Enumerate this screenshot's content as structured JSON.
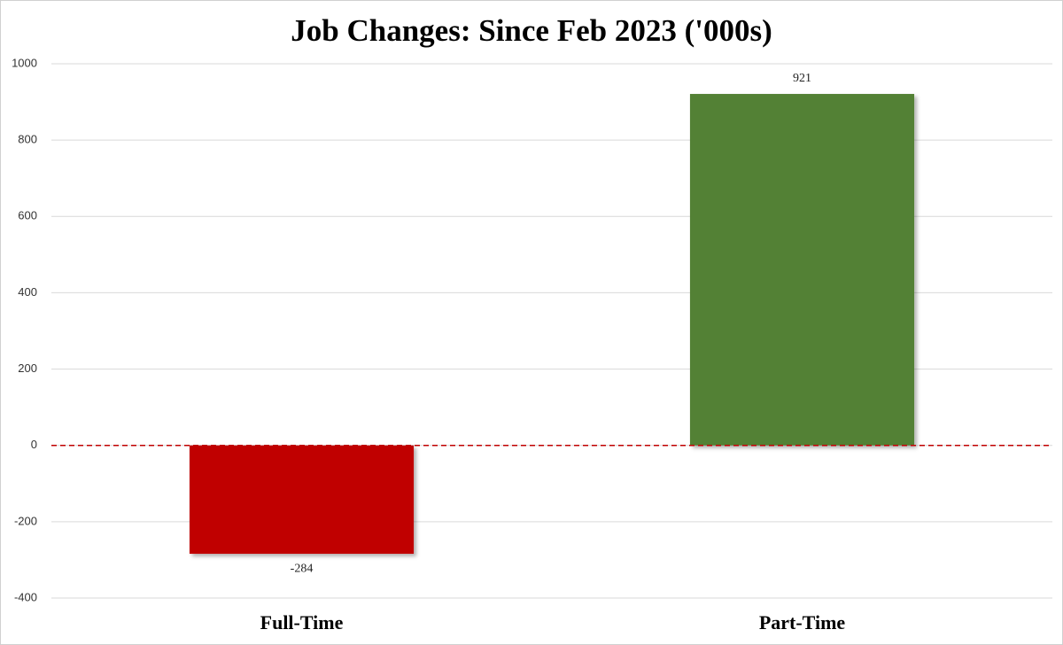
{
  "chart_data": {
    "type": "bar",
    "title": "Job Changes: Since Feb 2023 ('000s)",
    "categories": [
      "Full-Time",
      "Part-Time"
    ],
    "values": [
      -284,
      921
    ],
    "colors": [
      "#c00000",
      "#538135"
    ],
    "ylim": [
      -400,
      1000
    ],
    "yticks": [
      -400,
      -200,
      0,
      200,
      400,
      600,
      800,
      1000
    ],
    "grid": true,
    "zero_line_color": "#c00000"
  }
}
